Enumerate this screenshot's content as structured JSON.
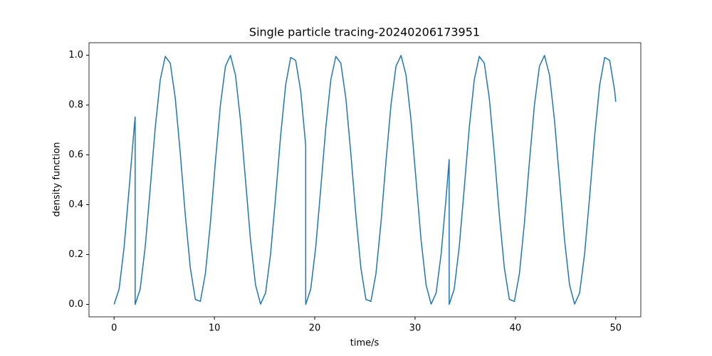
{
  "chart_data": {
    "type": "line",
    "title": "Single particle tracing-20240206173951",
    "x_label": "time/s",
    "y_label": "density function",
    "xlim": [
      -2.5,
      52.5
    ],
    "ylim": [
      -0.05,
      1.05
    ],
    "xticks": [
      0,
      10,
      20,
      30,
      40,
      50
    ],
    "yticks": [
      {
        "value": 0,
        "label": "0.0"
      },
      {
        "value": 0.2,
        "label": "0.2"
      },
      {
        "value": 0.4,
        "label": "0.4"
      },
      {
        "value": 0.6,
        "label": "0.6"
      },
      {
        "value": 0.8,
        "label": "0.8"
      },
      {
        "value": 1,
        "label": "1.0"
      }
    ],
    "color": "#1f77b4",
    "x": [
      0,
      0.5,
      1,
      1.5,
      2,
      2.1,
      2.1,
      2.6,
      3.1,
      3.6,
      4.1,
      4.6,
      5.1,
      5.6,
      6.1,
      6.6,
      7.1,
      7.6,
      8.1,
      8.6,
      9.1,
      9.6,
      10.1,
      10.6,
      11.1,
      11.6,
      12.1,
      12.6,
      13.1,
      13.6,
      14.1,
      14.6,
      15.1,
      15.6,
      16.1,
      16.6,
      17.1,
      17.6,
      18.1,
      18.6,
      19.1,
      19.1,
      19.6,
      20.1,
      20.6,
      21.1,
      21.6,
      22.1,
      22.6,
      23.1,
      23.6,
      24.1,
      24.6,
      25.1,
      25.6,
      26.1,
      26.6,
      27.1,
      27.6,
      28.1,
      28.6,
      29.1,
      29.6,
      30.1,
      30.6,
      31.1,
      31.6,
      32.1,
      32.6,
      33.1,
      33.4,
      33.4,
      33.9,
      34.4,
      34.9,
      35.4,
      35.9,
      36.4,
      36.9,
      37.4,
      37.9,
      38.4,
      38.9,
      39.4,
      39.9,
      40.4,
      40.9,
      41.4,
      41.9,
      42.4,
      42.9,
      43.4,
      43.9,
      44.4,
      44.9,
      45.4,
      45.9,
      46.4,
      46.9,
      47.4,
      47.9,
      48.4,
      48.9,
      49.4,
      49.9,
      50
    ],
    "values": [
      0,
      0.061,
      0.23,
      0.465,
      0.708,
      0.752,
      0,
      0.061,
      0.23,
      0.465,
      0.708,
      0.901,
      0.995,
      0.968,
      0.827,
      0.605,
      0.358,
      0.146,
      0.02,
      0.012,
      0.123,
      0.327,
      0.573,
      0.801,
      0.956,
      0.999,
      0.92,
      0.738,
      0.498,
      0.258,
      0.078,
      0.001,
      0.046,
      0.203,
      0.432,
      0.677,
      0.88,
      0.991,
      0.979,
      0.856,
      0.638,
      0,
      0.061,
      0.23,
      0.465,
      0.708,
      0.901,
      0.995,
      0.968,
      0.827,
      0.605,
      0.358,
      0.146,
      0.02,
      0.012,
      0.123,
      0.327,
      0.573,
      0.801,
      0.956,
      0.999,
      0.92,
      0.738,
      0.498,
      0.258,
      0.078,
      0.001,
      0.046,
      0.203,
      0.432,
      0.581,
      0,
      0.061,
      0.23,
      0.465,
      0.708,
      0.901,
      0.995,
      0.968,
      0.827,
      0.605,
      0.358,
      0.146,
      0.02,
      0.012,
      0.123,
      0.327,
      0.573,
      0.801,
      0.956,
      0.999,
      0.92,
      0.738,
      0.498,
      0.258,
      0.078,
      0.001,
      0.046,
      0.203,
      0.432,
      0.677,
      0.88,
      0.991,
      0.979,
      0.856,
      0.813
    ]
  }
}
